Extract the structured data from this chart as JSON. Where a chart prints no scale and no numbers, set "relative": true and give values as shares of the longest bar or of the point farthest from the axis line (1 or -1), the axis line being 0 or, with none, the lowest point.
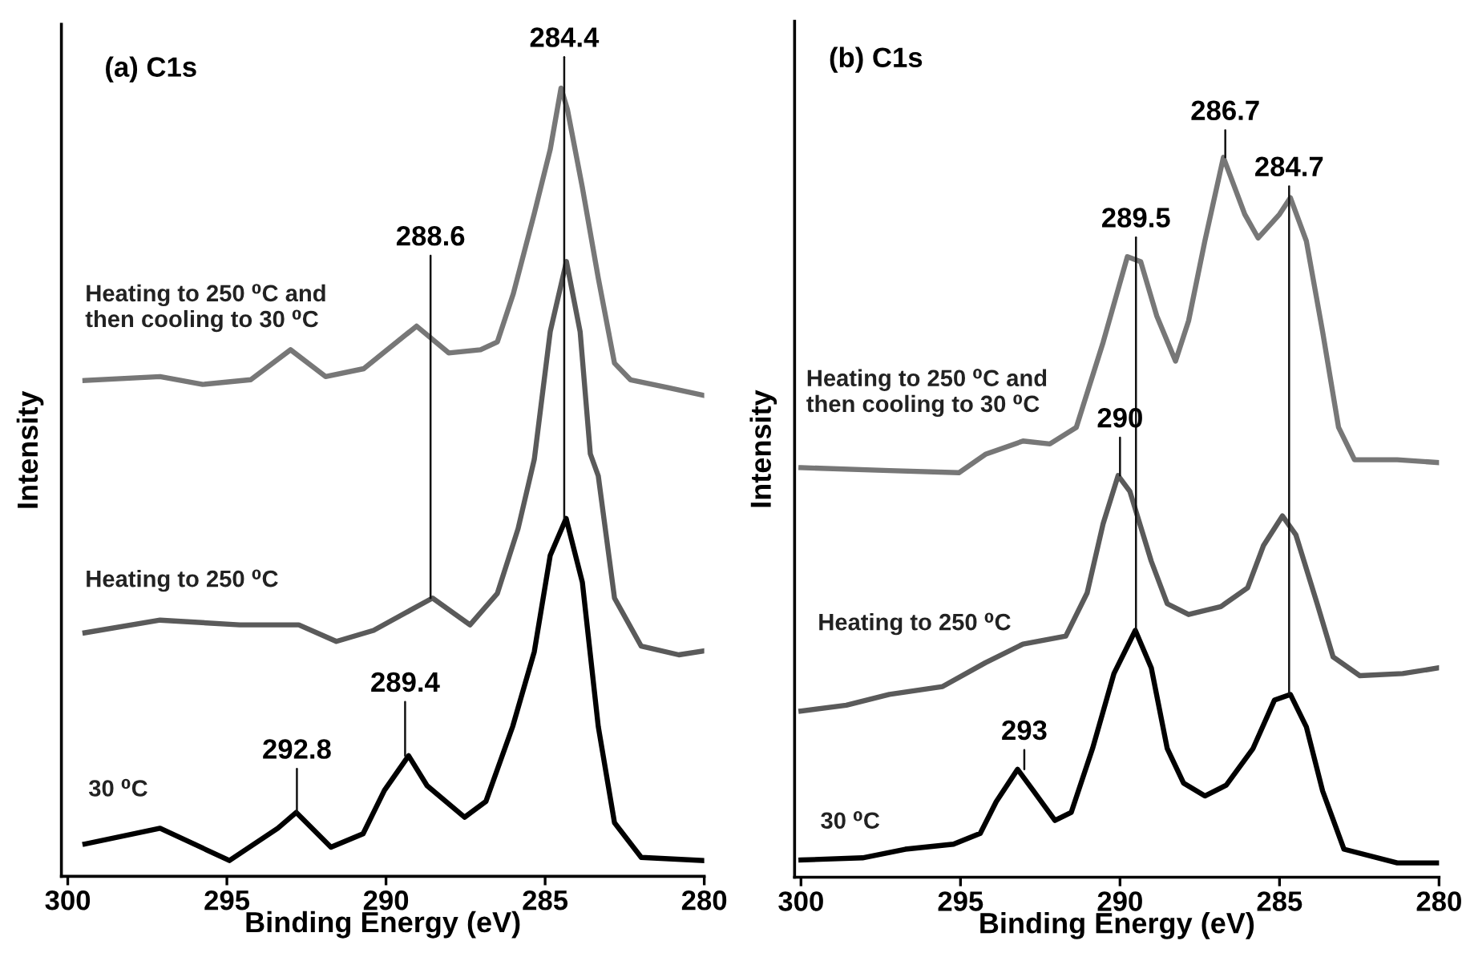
{
  "chart_data": [
    {
      "type": "line",
      "title": "(a) C1s",
      "xlabel": "Binding Energy (eV)",
      "ylabel": "Intensity",
      "relative": true,
      "xlim": [
        300.2,
        280
      ],
      "xticks": [
        300,
        295,
        290,
        285,
        280
      ],
      "series": [
        {
          "name": "Heating to 250 ⁰C and\nthen cooling to 30 ⁰C",
          "color": "#777777",
          "x": [
            299.46,
            297.1,
            295.76,
            294.25,
            293.0,
            291.9,
            290.7,
            289.04,
            288.03,
            287.03,
            286.5,
            286.0,
            285.34,
            284.84,
            284.5,
            284.3,
            283.83,
            283.33,
            282.82,
            282.32,
            281.14,
            280.0
          ],
          "values": [
            0.629,
            0.634,
            0.624,
            0.63,
            0.668,
            0.634,
            0.644,
            0.698,
            0.664,
            0.668,
            0.678,
            0.739,
            0.841,
            0.922,
            1.0,
            0.973,
            0.874,
            0.759,
            0.651,
            0.63,
            0.62,
            0.61
          ]
        },
        {
          "name": "Heating to 250 ⁰C",
          "color": "#5a5a5a",
          "x": [
            299.46,
            297.1,
            294.6,
            292.74,
            291.56,
            290.39,
            288.54,
            287.36,
            286.5,
            285.85,
            285.34,
            284.84,
            284.33,
            283.9,
            283.58,
            283.33,
            282.82,
            281.98,
            280.8,
            280.0
          ],
          "values": [
            0.309,
            0.325,
            0.319,
            0.319,
            0.298,
            0.312,
            0.353,
            0.319,
            0.359,
            0.441,
            0.529,
            0.691,
            0.78,
            0.691,
            0.536,
            0.508,
            0.353,
            0.292,
            0.281,
            0.286
          ]
        },
        {
          "name": "30 ⁰C",
          "color": "#000000",
          "x": [
            299.46,
            297.1,
            294.92,
            293.4,
            292.82,
            291.73,
            290.72,
            290.05,
            289.29,
            288.71,
            287.53,
            286.86,
            286.02,
            285.34,
            284.84,
            284.34,
            283.83,
            283.33,
            282.82,
            281.98,
            280.0
          ],
          "values": [
            0.041,
            0.061,
            0.02,
            0.061,
            0.081,
            0.037,
            0.054,
            0.109,
            0.153,
            0.115,
            0.075,
            0.095,
            0.19,
            0.285,
            0.407,
            0.454,
            0.373,
            0.19,
            0.068,
            0.024,
            0.02
          ]
        }
      ],
      "annotations": [
        {
          "text": "284.4",
          "x": 284.4,
          "y": 0.454
        },
        {
          "text": "288.6",
          "x": 288.6,
          "y": 0.353
        },
        {
          "text": "289.4",
          "x": 289.4,
          "y": 0.153
        },
        {
          "text": "292.8",
          "x": 292.8,
          "y": 0.081
        }
      ]
    },
    {
      "type": "line",
      "title": "(b) C1s",
      "xlabel": "Binding Energy (eV)",
      "ylabel": "Intensity",
      "relative": true,
      "xlim": [
        300.2,
        280
      ],
      "xticks": [
        300,
        295,
        290,
        285,
        280
      ],
      "series": [
        {
          "name": "Heating to 250 ⁰C and\nthen cooling to 30 ⁰C",
          "color": "#777777",
          "x": [
            300.0,
            297.23,
            295.05,
            294.2,
            293.04,
            292.2,
            291.37,
            290.53,
            289.77,
            289.35,
            288.85,
            288.26,
            287.85,
            287.34,
            286.76,
            286.09,
            285.67,
            285.0,
            284.66,
            284.16,
            283.65,
            283.15,
            282.65,
            281.31,
            280.0
          ],
          "values": [
            0.569,
            0.565,
            0.562,
            0.588,
            0.606,
            0.602,
            0.625,
            0.743,
            0.862,
            0.855,
            0.78,
            0.717,
            0.773,
            0.884,
            1.0,
            0.921,
            0.888,
            0.921,
            0.944,
            0.884,
            0.758,
            0.625,
            0.58,
            0.58,
            0.576
          ]
        },
        {
          "name": "Heating to 250 ⁰C",
          "color": "#5a5a5a",
          "x": [
            300.0,
            298.58,
            297.23,
            295.56,
            294.22,
            293.04,
            291.7,
            291.03,
            290.53,
            290.06,
            289.69,
            289.02,
            288.52,
            287.85,
            286.84,
            286.0,
            285.5,
            284.91,
            284.49,
            283.82,
            283.32,
            282.48,
            281.14,
            280.0
          ],
          "values": [
            0.231,
            0.239,
            0.254,
            0.265,
            0.298,
            0.324,
            0.335,
            0.395,
            0.491,
            0.558,
            0.536,
            0.439,
            0.38,
            0.365,
            0.376,
            0.402,
            0.461,
            0.502,
            0.476,
            0.38,
            0.306,
            0.28,
            0.283,
            0.291
          ]
        },
        {
          "name": "30 ⁰C",
          "color": "#000000",
          "x": [
            300.0,
            298.07,
            296.73,
            295.22,
            294.38,
            293.88,
            293.21,
            292.71,
            292.04,
            291.53,
            290.86,
            290.19,
            289.52,
            289.02,
            288.52,
            288.01,
            287.34,
            286.67,
            285.83,
            285.16,
            284.66,
            284.16,
            283.65,
            282.98,
            281.31,
            280.0
          ],
          "values": [
            0.024,
            0.027,
            0.039,
            0.046,
            0.061,
            0.105,
            0.15,
            0.12,
            0.079,
            0.09,
            0.179,
            0.283,
            0.343,
            0.291,
            0.179,
            0.131,
            0.113,
            0.128,
            0.179,
            0.246,
            0.254,
            0.209,
            0.12,
            0.039,
            0.02,
            0.02
          ]
        }
      ],
      "annotations": [
        {
          "text": "286.7",
          "x": 286.7,
          "y": 1.0
        },
        {
          "text": "284.7",
          "x": 284.7,
          "y": 0.254
        },
        {
          "text": "289.5",
          "x": 289.5,
          "y": 0.343
        },
        {
          "text": "290",
          "x": 290.0,
          "y": 0.558
        },
        {
          "text": "293",
          "x": 293.0,
          "y": 0.15
        }
      ]
    }
  ]
}
